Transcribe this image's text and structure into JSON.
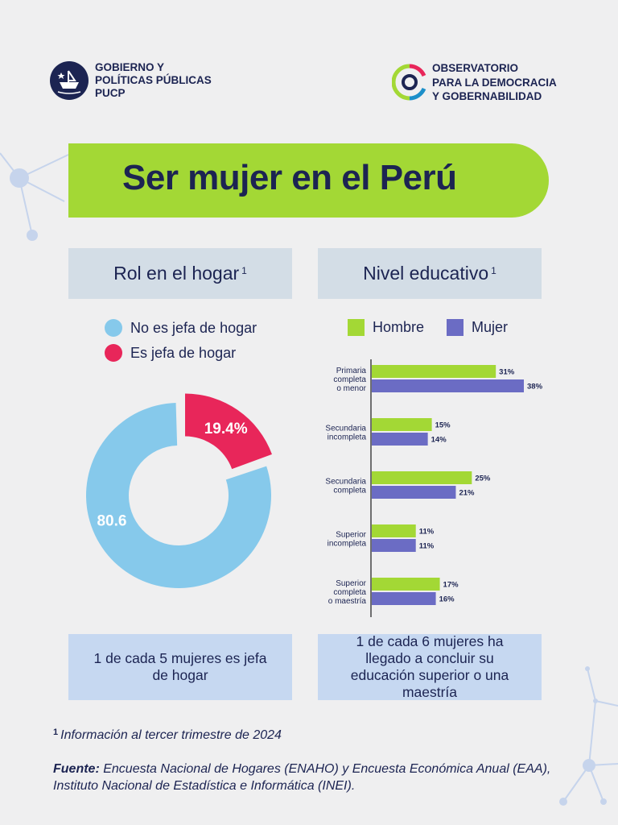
{
  "logos": {
    "left": [
      "GOBIERNO Y",
      "POLÍTICAS PÚBLICAS",
      "PUCP"
    ],
    "right": [
      "OBSERVATORIO",
      "PARA LA DEMOCRACIA",
      "Y GOBERNABILIDAD"
    ]
  },
  "title": "Ser mujer en el Perú",
  "panels": {
    "left_title": "Rol en el hogar",
    "left_sup": "1",
    "right_title": "Nivel educativo",
    "right_sup": "1"
  },
  "callouts": {
    "left": "1 de cada 5 mujeres es jefa de hogar",
    "right": "1 de cada 6 mujeres ha llegado a concluir su educación superior o una maestría"
  },
  "footnote": {
    "marker": "1",
    "text": "Información al tercer trimestre de 2024"
  },
  "source": {
    "label": "Fuente:",
    "text": "Encuesta Nacional de Hogares (ENAHO) y Encuesta Económica Anual (EAA), Instituto Nacional de Estadística e Informática (INEI)."
  },
  "colors": {
    "navy": "#1c2452",
    "green": "#a3d835",
    "light_blue": "#86c9eb",
    "pink": "#e8265a",
    "purple": "#6b6cc4",
    "panel_gray": "#d3dde6",
    "callout_blue": "#c6d8f1",
    "background": "#efeff0"
  },
  "chart_data": [
    {
      "type": "pie",
      "title": "Rol en el hogar",
      "legend_position": "top",
      "slices": [
        {
          "name": "No es jefa de hogar",
          "value": 80.6,
          "label": "80.6",
          "color": "#86c9eb"
        },
        {
          "name": "Es jefa de hogar",
          "value": 19.4,
          "label": "19.4%",
          "color": "#e8265a"
        }
      ]
    },
    {
      "type": "bar",
      "orientation": "horizontal",
      "title": "Nivel educativo",
      "legend_position": "top",
      "categories": [
        [
          "Primaria",
          "completa",
          "o menor"
        ],
        [
          "Secundaria",
          "incompleta"
        ],
        [
          "Secundaria",
          "completa"
        ],
        [
          "Superior",
          "incompleta"
        ],
        [
          "Superior",
          "completa",
          "o maestría"
        ]
      ],
      "xlim": [
        0,
        38
      ],
      "series": [
        {
          "name": "Hombre",
          "color": "#a3d835",
          "values": [
            31,
            15,
            25,
            11,
            17
          ],
          "labels": [
            "31%",
            "15%",
            "25%",
            "11%",
            "17%"
          ]
        },
        {
          "name": "Mujer",
          "color": "#6b6cc4",
          "values": [
            38,
            14,
            21,
            11,
            16
          ],
          "labels": [
            "38%",
            "14%",
            "21%",
            "11%",
            "16%"
          ]
        }
      ]
    }
  ]
}
